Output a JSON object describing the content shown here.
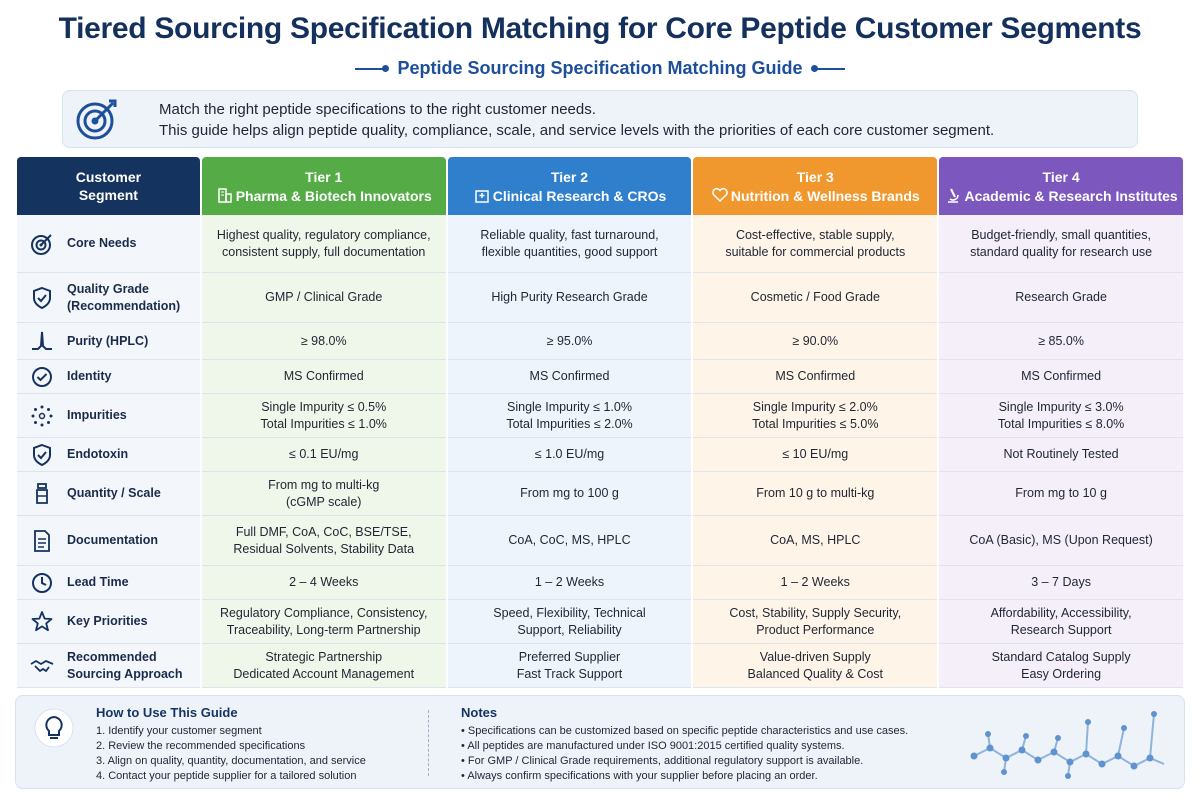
{
  "title": "Tiered Sourcing Specification Matching for Core Peptide Customer Segments",
  "subtitle": "Peptide Sourcing Specification Matching Guide",
  "intro": {
    "line1": "Match the right peptide specifications to the right customer needs.",
    "line2": "This guide helps align peptide quality, compliance, scale, and service levels with the priorities of each core customer segment."
  },
  "header": {
    "segment_line1": "Customer",
    "segment_line2": "Segment",
    "tiers": [
      {
        "tier": "Tier 1",
        "name": "Pharma & Biotech Innovators",
        "color": "#55ac47",
        "icon": "building-icon"
      },
      {
        "tier": "Tier 2",
        "name": "Clinical Research & CROs",
        "color": "#2f7fcc",
        "icon": "hospital-icon"
      },
      {
        "tier": "Tier 3",
        "name": "Nutrition & Wellness Brands",
        "color": "#f0982e",
        "icon": "heart-icon"
      },
      {
        "tier": "Tier 4",
        "name": "Academic & Research Institutes",
        "color": "#7c58be",
        "icon": "microscope-icon"
      }
    ]
  },
  "rows": [
    {
      "label": "Core Needs",
      "icon": "target-icon",
      "cells": [
        [
          "Highest quality, regulatory compliance,",
          "consistent supply, full documentation"
        ],
        [
          "Reliable quality, fast turnaround,",
          "flexible quantities, good support"
        ],
        [
          "Cost-effective, stable supply,",
          "suitable for commercial products"
        ],
        [
          "Budget-friendly, small quantities,",
          "standard quality for research use"
        ]
      ]
    },
    {
      "label": "Quality Grade",
      "label2": "(Recommendation)",
      "icon": "shield-icon",
      "cells": [
        [
          "GMP / Clinical Grade",
          ""
        ],
        [
          "High Purity Research Grade",
          ""
        ],
        [
          "Cosmetic / Food Grade",
          ""
        ],
        [
          "Research Grade",
          ""
        ]
      ]
    },
    {
      "label": "Purity (HPLC)",
      "icon": "peak-icon",
      "cells": [
        [
          "≥ 98.0%",
          ""
        ],
        [
          "≥ 95.0%",
          ""
        ],
        [
          "≥ 90.0%",
          ""
        ],
        [
          "≥ 85.0%",
          ""
        ]
      ]
    },
    {
      "label": "Identity",
      "icon": "check-circle-icon",
      "cells": [
        [
          "MS Confirmed",
          ""
        ],
        [
          "MS Confirmed",
          ""
        ],
        [
          "MS Confirmed",
          ""
        ],
        [
          "MS Confirmed",
          ""
        ]
      ]
    },
    {
      "label": "Impurities",
      "icon": "dots-ring-icon",
      "cells": [
        [
          "Single Impurity ≤ 0.5%",
          "Total Impurities ≤ 1.0%"
        ],
        [
          "Single Impurity ≤ 1.0%",
          "Total Impurities ≤ 2.0%"
        ],
        [
          "Single Impurity ≤ 2.0%",
          "Total Impurities ≤ 5.0%"
        ],
        [
          "Single Impurity ≤ 3.0%",
          "Total Impurities ≤ 8.0%"
        ]
      ]
    },
    {
      "label": "Endotoxin",
      "icon": "shield-check-icon",
      "cells": [
        [
          "≤ 0.1 EU/mg",
          ""
        ],
        [
          "≤ 1.0 EU/mg",
          ""
        ],
        [
          "≤ 10 EU/mg",
          ""
        ],
        [
          "Not Routinely Tested",
          ""
        ]
      ]
    },
    {
      "label": "Quantity / Scale",
      "icon": "vial-icon",
      "cells": [
        [
          "From mg to multi-kg",
          "(cGMP scale)"
        ],
        [
          "From mg to 100 g",
          ""
        ],
        [
          "From 10 g to multi-kg",
          ""
        ],
        [
          "From mg to 10 g",
          ""
        ]
      ]
    },
    {
      "label": "Documentation",
      "icon": "document-icon",
      "cells": [
        [
          "Full DMF, CoA, CoC, BSE/TSE,",
          "Residual Solvents, Stability Data"
        ],
        [
          "CoA, CoC, MS, HPLC",
          ""
        ],
        [
          "CoA, MS, HPLC",
          ""
        ],
        [
          "CoA (Basic), MS (Upon Request)",
          ""
        ]
      ]
    },
    {
      "label": "Lead Time",
      "icon": "clock-icon",
      "cells": [
        [
          "2 – 4 Weeks",
          ""
        ],
        [
          "1 – 2 Weeks",
          ""
        ],
        [
          "1 – 2 Weeks",
          ""
        ],
        [
          "3 – 7 Days",
          ""
        ]
      ]
    },
    {
      "label": "Key Priorities",
      "icon": "star-icon",
      "cells": [
        [
          "Regulatory Compliance, Consistency,",
          "Traceability, Long-term Partnership"
        ],
        [
          "Speed, Flexibility, Technical",
          "Support, Reliability"
        ],
        [
          "Cost, Stability, Supply Security,",
          "Product Performance"
        ],
        [
          "Affordability, Accessibility,",
          "Research Support"
        ]
      ]
    },
    {
      "label": "Recommended",
      "label2": "Sourcing Approach",
      "icon": "handshake-icon",
      "cells": [
        [
          "Strategic Partnership",
          "Dedicated Account Management"
        ],
        [
          "Preferred Supplier",
          "Fast Track Support"
        ],
        [
          "Value-driven Supply",
          "Balanced Quality & Cost"
        ],
        [
          "Standard Catalog Supply",
          "Easy Ordering"
        ]
      ]
    }
  ],
  "how_to_use": {
    "title": "How to Use This Guide",
    "items": [
      "1. Identify your customer segment",
      "2. Review the recommended specifications",
      "3. Align on quality, quantity, documentation, and service",
      "4. Contact your peptide supplier for a tailored solution"
    ]
  },
  "notes": {
    "title": "Notes",
    "items": [
      "Specifications can be customized based on specific peptide characteristics and use cases.",
      "All peptides are manufactured under ISO 9001:2015 certified quality systems.",
      "For GMP / Clinical Grade requirements, additional regulatory support is available.",
      "Always confirm specifications with your supplier before placing an order."
    ]
  },
  "colors": {
    "navy": "#15335f",
    "tier1": "#55ac47",
    "tier2": "#2f7fcc",
    "tier3": "#f0982e",
    "tier4": "#7c58be"
  }
}
